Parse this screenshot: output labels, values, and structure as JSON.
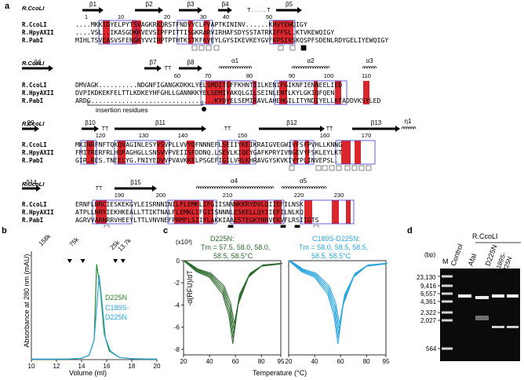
{
  "panels": {
    "a": "a",
    "b": "b",
    "c": "c",
    "d": "d"
  },
  "alignment": {
    "ref_header": "R.CcoLI",
    "names": [
      "R.CcoLI",
      "R.HpyAXII",
      "R.PabI"
    ],
    "blocks": [
      {
        "ss": "β1        β2        β3      β4     β5",
        "nums": [
          {
            "n": "1",
            "c": 6
          },
          {
            "n": "10",
            "c": 16
          },
          {
            "n": "20",
            "c": 27
          },
          {
            "n": "30",
            "c": 38
          },
          {
            "n": "40",
            "c": 48
          },
          {
            "n": "50",
            "c": 58
          }
        ],
        "rows": [
          "....MKKIDYELPYTSVAGKRKQRSTFNDVYCLPVAPTKININV.....KHVYEWQIGY",
          "....VSL..IKASGDKKVEVSIPFPITTISGKRARVIRHAFSDYSSTATRKIFFSL.KTVKEWQIGY",
          "MIHLTSVEASVSFENGKYVVIRPTPTHTKSTKFKVE.YLGYSIKEVKEYGVFKPSIVSKQSPFSDENLRDYGELIYEWQIGY"
        ]
      }
    ],
    "row_names_block": [
      "R.CcoLI",
      "R.HpyAXII",
      "R.PabI"
    ],
    "block1_rows": [
      "....MKKIDYELPYTSVAGKRKQRSTFNDVYCLPVAPTKININV......KHVYEWQIGY",
      "....VSL..IKASGDKKVEVSIPFPITTISGKRARVIRHAFSDYSSTATRKIFFSL.KTVKEWQIGY",
      "MIHLTSVEASVSFENGKYVVIRPTPTHTKSTKFKVEYLGYSIKEVKEYGVFKPSIVSKQSPFSDENLRDYGELIYEWQIGY"
    ],
    "block1_nums": [
      "1",
      "10",
      "20",
      "30",
      "40",
      "50"
    ],
    "block1_ss": [
      "β1",
      "β2",
      "β3",
      "β4",
      "β5"
    ],
    "block1_t": "T . . . . . T",
    "block2_rows": [
      "DMVAGK..........NDGNFIGANGKDKKLYELSMDITQFFKHNTIILKENIFGIKNFIENNEELIED",
      "DVPIKDKEKFELTTLKDKEYHFGHLLGANNKKYELSEMIYAKQLGILSEINLENTLKYLGKIQFQEN",
      "ARDG................................KYDYELSEMIRAVLAHEHGILITYNDIYELLKFADDVKSYLED"
    ],
    "block2_nums": [
      "60",
      "70",
      "80",
      "90",
      "100",
      "110"
    ],
    "block2_ss": [
      "β6",
      "β7",
      "TT",
      "β8",
      "α1",
      "α2",
      "α3"
    ],
    "block2_note": "insertion residues",
    "block3_rows": [
      "MKINRFNFTQKQVAGINLESYVSVPLLVVYQFNNNEFLSEIIYKEIKRAIGVEGWIVFSFPVHLLKNNG",
      "FMITRERFRLHQFAGHGLLSNSVVPVEIISFDDNQ.LSEVLKIQEYGAFKPRYIVNGEVYFSKLEYLKT",
      "GIR.RES.TNEELYG.FNIYEDVVPVAVKKELPSGEFIGILVRLKHRAVGYSKVKIVYPLINVEPSL."
    ],
    "block3_nums": [
      "120",
      "130",
      "140",
      "150",
      "160",
      "170"
    ],
    "block3_ss": [
      "β9",
      "β10",
      "TT",
      "β11",
      "TT",
      "β12",
      "TT",
      "β13",
      "η1"
    ],
    "block4_rows": [
      "ERNFLNRCIESKEKGYLEISRNNINILFLEMKLIFGIISNNNKKRYDVLQIIEFILNSK",
      "ATPLLNRYIEKHKEALLTTIKTNALFLEMKLIFGIISNNNLESKELLQYIIEFILNLKQ",
      "AGRVVARNRRVHEEYLTTLVNVNEFPRMFLSIIYLAKKIAAESTEGKYNRVEKVFLRSIIGTS"
    ],
    "block4_nums": [
      "190",
      "200",
      "210",
      "220",
      "230"
    ],
    "block4_ss": [
      "β14",
      "TT",
      "β15",
      "α4",
      "α5"
    ]
  },
  "panel_b": {
    "ylabel": "Absorbance at 280 nm (mAU)",
    "xlabel": "Volume (ml)",
    "markers": [
      "158k",
      "75k",
      "25k",
      "13.7k"
    ],
    "legend": [
      "D225N",
      "C189S-",
      "D225N"
    ],
    "xticks": [
      "10",
      "12",
      "14",
      "16",
      "18",
      "20"
    ]
  },
  "panel_c": {
    "ylabel": "-d(RFU)/dT",
    "scale": "(x10³)",
    "left_title": "D225N:",
    "left_tm1": "Tm = 57.5, 58.0, 58.0,",
    "left_tm2": "58.5, 58.5°C",
    "right_title": "C189S-D225N:",
    "right_tm1": "Tm = 58.0, 58.5, 58.5,",
    "right_tm2": "58.5, 58.5°C",
    "yticks": [
      "0",
      "-2",
      "-4",
      "-6",
      "-8"
    ],
    "xticks": [
      "20",
      "40",
      "60",
      "80",
      "95"
    ],
    "xlabel": "Temperature (°C)"
  },
  "panel_d": {
    "header": "R.CcoLI",
    "bp": "(bp)",
    "lanes": [
      "M",
      "Control",
      "AfaI",
      "D225N",
      "C189S-D225N"
    ],
    "sizes": [
      "23,130",
      "9,416",
      "6,557",
      "4,361",
      "2,322",
      "2,027",
      "564"
    ]
  },
  "chart_data": [
    {
      "type": "line",
      "title": "",
      "xlabel": "Volume (ml)",
      "ylabel": "Absorbance at 280 nm (mAU)",
      "xlim": [
        10,
        20
      ],
      "series": [
        {
          "name": "D225N",
          "color": "#2e8b2e",
          "x": [
            10,
            12,
            13,
            14,
            14.6,
            15.0,
            15.2,
            15.5,
            15.8,
            16.2,
            17,
            18,
            20
          ],
          "y": [
            0.2,
            0.2,
            0.3,
            0.6,
            2,
            9,
            44,
            32,
            12,
            4,
            1,
            0.4,
            0.2
          ]
        },
        {
          "name": "C189S-D225N",
          "color": "#2aa6dc",
          "x": [
            10,
            12,
            13,
            14,
            14.6,
            15.0,
            15.4,
            15.6,
            15.9,
            16.3,
            17,
            18,
            20
          ],
          "y": [
            0.2,
            0.2,
            0.3,
            0.6,
            2,
            9,
            39,
            28,
            10,
            4,
            1,
            0.4,
            0.2
          ]
        }
      ]
    },
    {
      "type": "line",
      "title": "D225N",
      "xlabel": "Temperature (°C)",
      "ylabel": "-d(RFU)/dT",
      "xlim": [
        20,
        95
      ],
      "series": [
        {
          "name": "D225N",
          "color": "#2e6b2e",
          "x": [
            20,
            30,
            40,
            50,
            55,
            58,
            62,
            70,
            80,
            95
          ],
          "y": [
            0,
            -1.0,
            -1.5,
            -3.0,
            -5.0,
            -7.5,
            -4,
            -1.5,
            -0.5,
            -0.3
          ]
        }
      ]
    },
    {
      "type": "line",
      "title": "C189S-D225N",
      "xlabel": "Temperature (°C)",
      "ylabel": "-d(RFU)/dT",
      "xlim": [
        20,
        95
      ],
      "series": [
        {
          "name": "C189S-D225N",
          "color": "#2aa6dc",
          "x": [
            20,
            30,
            40,
            50,
            55,
            58,
            62,
            70,
            80,
            95
          ],
          "y": [
            0,
            -1.0,
            -1.5,
            -3.0,
            -5.0,
            -7.5,
            -4,
            -1.5,
            -0.5,
            -0.3
          ]
        }
      ]
    }
  ]
}
